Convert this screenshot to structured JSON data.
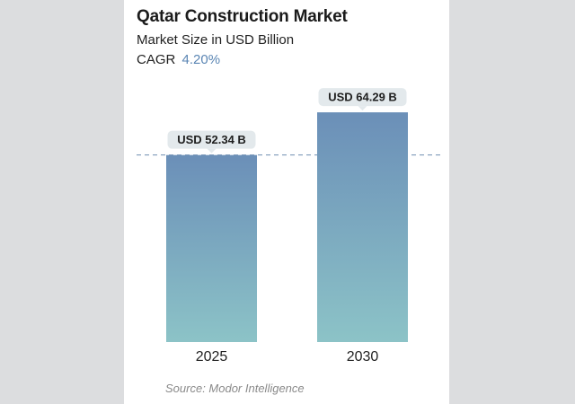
{
  "header": {
    "title": "Qatar Construction Market",
    "subtitle": "Market Size in USD Billion",
    "cagr_label": "CAGR",
    "cagr_value": "4.20%"
  },
  "footer": {
    "source": "Source: Modor Intelligence"
  },
  "colors": {
    "bar_top": "#6b8fb8",
    "bar_bottom": "#8cc3c7",
    "label_bg": "#e3e9ec",
    "dashed_line": "#6f8fb0",
    "cagr_accent": "#5b86b4"
  },
  "chart_data": {
    "type": "bar",
    "title": "Qatar Construction Market",
    "subtitle": "Market Size in USD Billion",
    "categories": [
      "2025",
      "2030"
    ],
    "values": [
      52.34,
      64.29
    ],
    "data_labels": [
      "USD 52.34 B",
      "USD 64.29 B"
    ],
    "unit": "USD Billion",
    "reference_line": 52.34,
    "xlabel": "",
    "ylabel": "",
    "grid": false,
    "legend": "none"
  }
}
